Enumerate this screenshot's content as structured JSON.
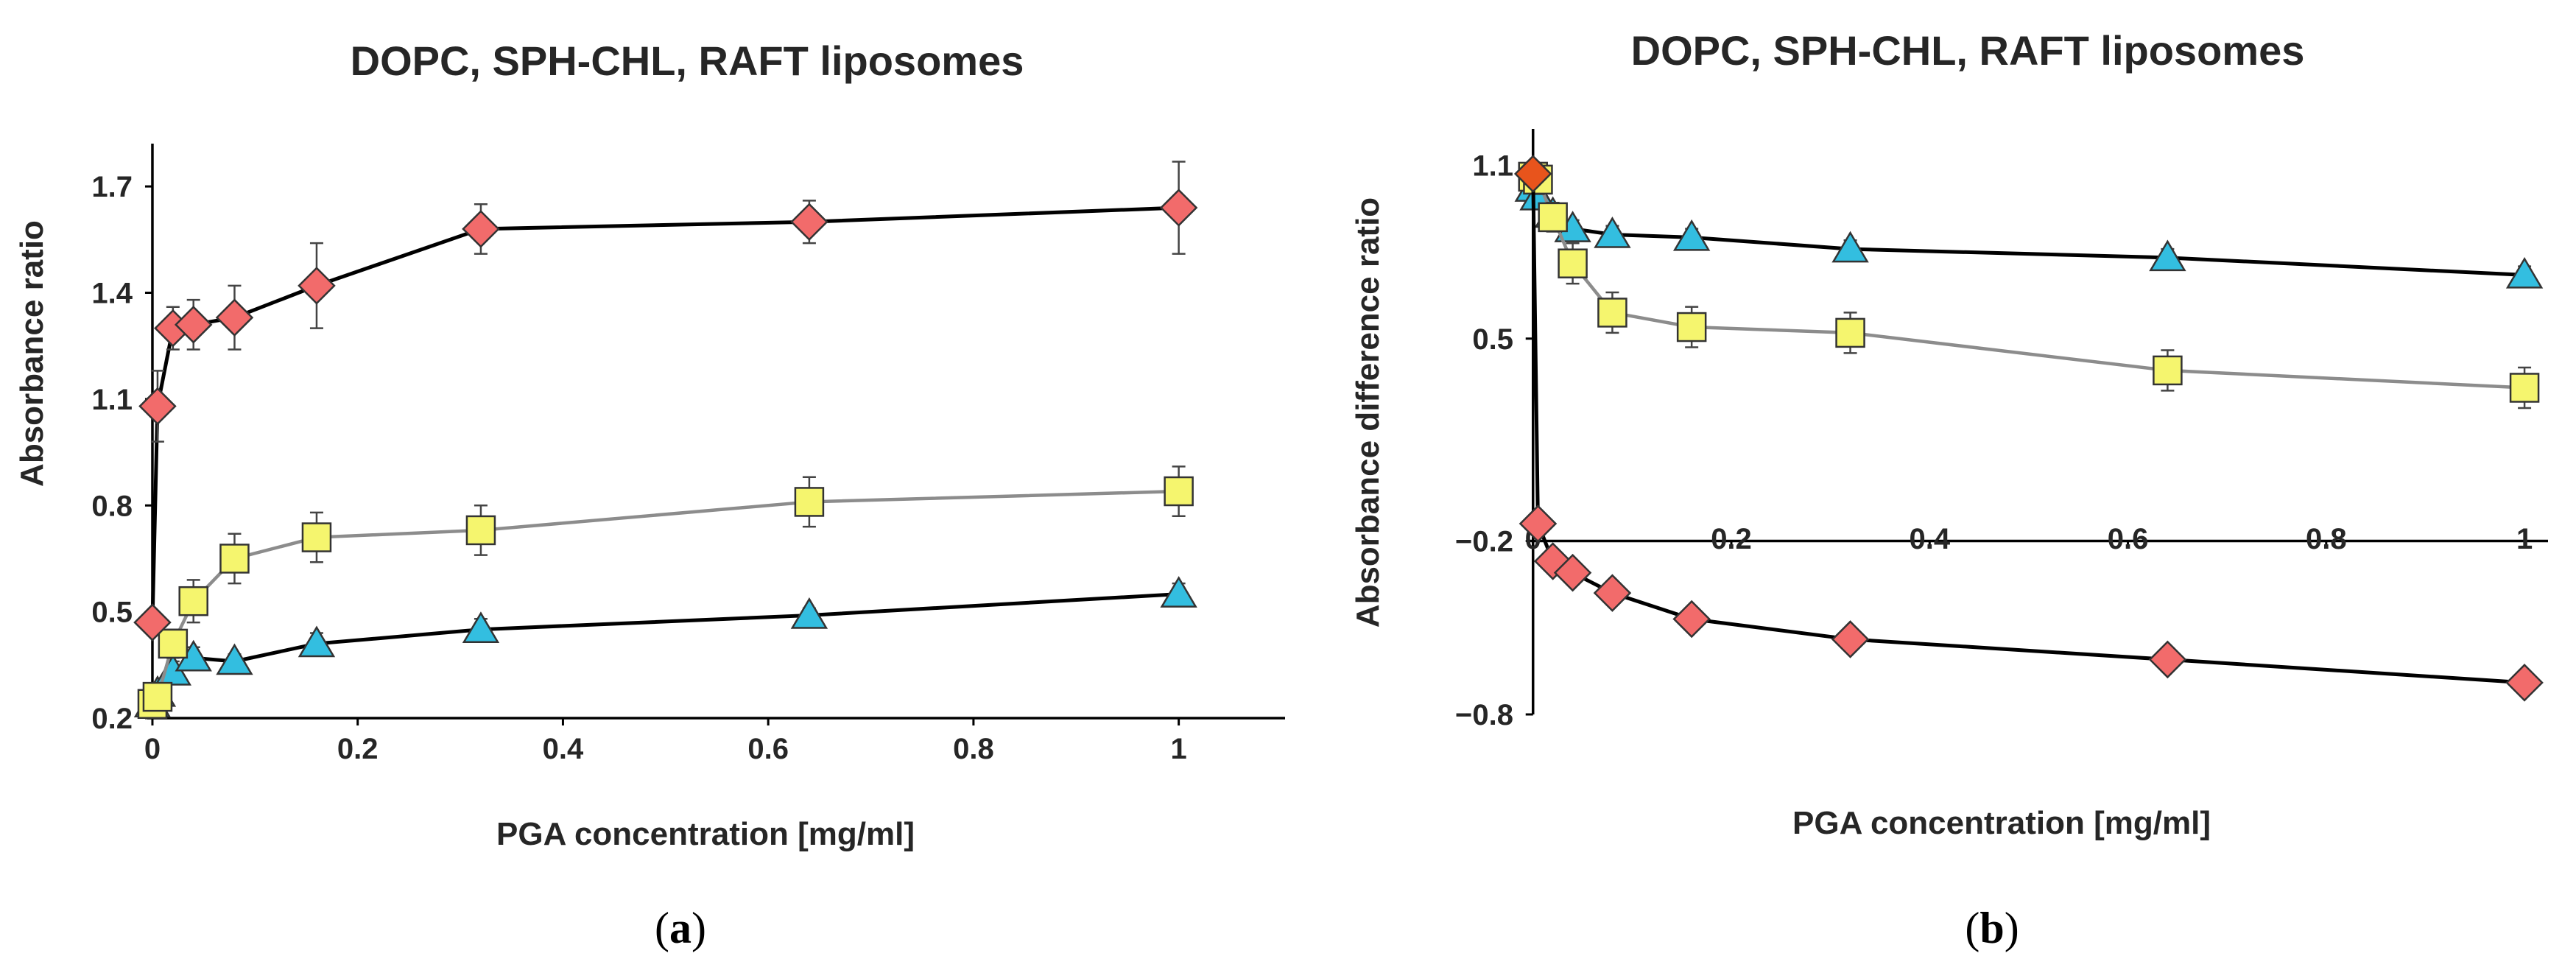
{
  "chart_data": [
    {
      "panel": "a",
      "type": "line",
      "title": "DOPC, SPH-CHL, RAFT liposomes",
      "xlabel": "PGA concentration [mg/ml]",
      "ylabel": "Absorbance ratio",
      "caption_open": "(",
      "caption_letter": "a",
      "caption_close": ")",
      "xlim": [
        -0.005,
        1.1
      ],
      "ylim": [
        0.2,
        1.8
      ],
      "xticks": [
        0,
        0.2,
        0.4,
        0.6,
        0.8,
        1
      ],
      "xtick_labels": [
        "0",
        "0.2",
        "0.4",
        "0.6",
        "0.8",
        "1"
      ],
      "yticks": [
        0.2,
        0.5,
        0.8,
        1.1,
        1.4,
        1.7
      ],
      "ytick_labels": [
        "0.2",
        "0.5",
        "0.8",
        "1.1",
        "1.4",
        "1.7"
      ],
      "x_axis_at": 0.2,
      "y_axis_at": 0,
      "series": [
        {
          "name": "Triangle (blue)",
          "marker": "triangle",
          "fill": "#33BEE0",
          "line": "#000000",
          "x": [
            0,
            0.005,
            0.02,
            0.04,
            0.08,
            0.16,
            0.32,
            0.64,
            1
          ],
          "y": [
            0.24,
            0.27,
            0.33,
            0.37,
            0.36,
            0.41,
            0.45,
            0.49,
            0.55
          ],
          "err": [
            0.02,
            0.02,
            0.03,
            0.03,
            0.02,
            0.03,
            0.03,
            0.02,
            0.03
          ]
        },
        {
          "name": "Square (yellow)",
          "marker": "square",
          "fill": "#F5F56E",
          "line": "#8C8C8C",
          "x": [
            0,
            0.005,
            0.02,
            0.04,
            0.08,
            0.16,
            0.32,
            0.64,
            1
          ],
          "y": [
            0.24,
            0.26,
            0.41,
            0.53,
            0.65,
            0.71,
            0.73,
            0.81,
            0.84
          ],
          "err": [
            0.02,
            0.02,
            0.04,
            0.06,
            0.07,
            0.07,
            0.07,
            0.07,
            0.07
          ]
        },
        {
          "name": "Diamond (red)",
          "marker": "diamond",
          "fill": "#F26B6B",
          "line": "#000000",
          "x": [
            0,
            0.005,
            0.02,
            0.04,
            0.08,
            0.16,
            0.32,
            0.64,
            1
          ],
          "y": [
            0.47,
            1.08,
            1.3,
            1.31,
            1.33,
            1.42,
            1.58,
            1.6,
            1.64
          ],
          "err": [
            0.02,
            0.1,
            0.06,
            0.07,
            0.09,
            0.12,
            0.07,
            0.06,
            0.13
          ]
        }
      ]
    },
    {
      "panel": "b",
      "type": "line",
      "title": "DOPC, SPH-CHL, RAFT liposomes",
      "xlabel": "PGA concentration [mg/ml]",
      "ylabel": "Absorbance difference ratio",
      "caption_open": "(",
      "caption_letter": "b",
      "caption_close": ")",
      "xlim": [
        -0.005,
        1.02
      ],
      "ylim": [
        -0.8,
        1.2
      ],
      "xticks": [
        0,
        0.2,
        0.4,
        0.6,
        0.8,
        1
      ],
      "xtick_labels": [
        "0",
        "0.2",
        "0.4",
        "0.6",
        "0.8",
        "1"
      ],
      "yticks": [
        -0.8,
        -0.2,
        0.5,
        1.1
      ],
      "ytick_labels": [
        "−0.8",
        "−0.2",
        "0.5",
        "1.1"
      ],
      "x_axis_at": -0.2,
      "y_axis_at": 0,
      "series": [
        {
          "name": "Triangle (blue)",
          "marker": "triangle",
          "fill": "#33BEE0",
          "line": "#000000",
          "x": [
            0,
            0.005,
            0.02,
            0.04,
            0.08,
            0.16,
            0.32,
            0.64,
            1
          ],
          "y": [
            1.02,
            0.99,
            0.93,
            0.88,
            0.86,
            0.85,
            0.81,
            0.78,
            0.72
          ],
          "err": [
            0.04,
            0.04,
            0.03,
            0.03,
            0.03,
            0.03,
            0.03,
            0.03,
            0.03
          ]
        },
        {
          "name": "Square (yellow)",
          "marker": "square",
          "fill": "#F5F56E",
          "line": "#8C8C8C",
          "x": [
            0,
            0.005,
            0.02,
            0.04,
            0.08,
            0.16,
            0.32,
            0.64,
            1
          ],
          "y": [
            1.06,
            1.05,
            0.92,
            0.76,
            0.59,
            0.54,
            0.52,
            0.39,
            0.33
          ],
          "err": [
            0.05,
            0.05,
            0.05,
            0.07,
            0.07,
            0.07,
            0.07,
            0.07,
            0.07
          ]
        },
        {
          "name": "Diamond (red)",
          "marker": "diamond",
          "fill": "#F26B6B",
          "line": "#000000",
          "x": [
            0,
            0.005,
            0.02,
            0.04,
            0.08,
            0.16,
            0.32,
            0.64,
            1
          ],
          "y": [
            1.07,
            -0.14,
            -0.27,
            -0.31,
            -0.38,
            -0.47,
            -0.54,
            -0.61,
            -0.69
          ],
          "err": [
            0.03,
            0.02,
            0.02,
            0.02,
            0.02,
            0.02,
            0.02,
            0.02,
            0.02
          ]
        }
      ]
    }
  ]
}
